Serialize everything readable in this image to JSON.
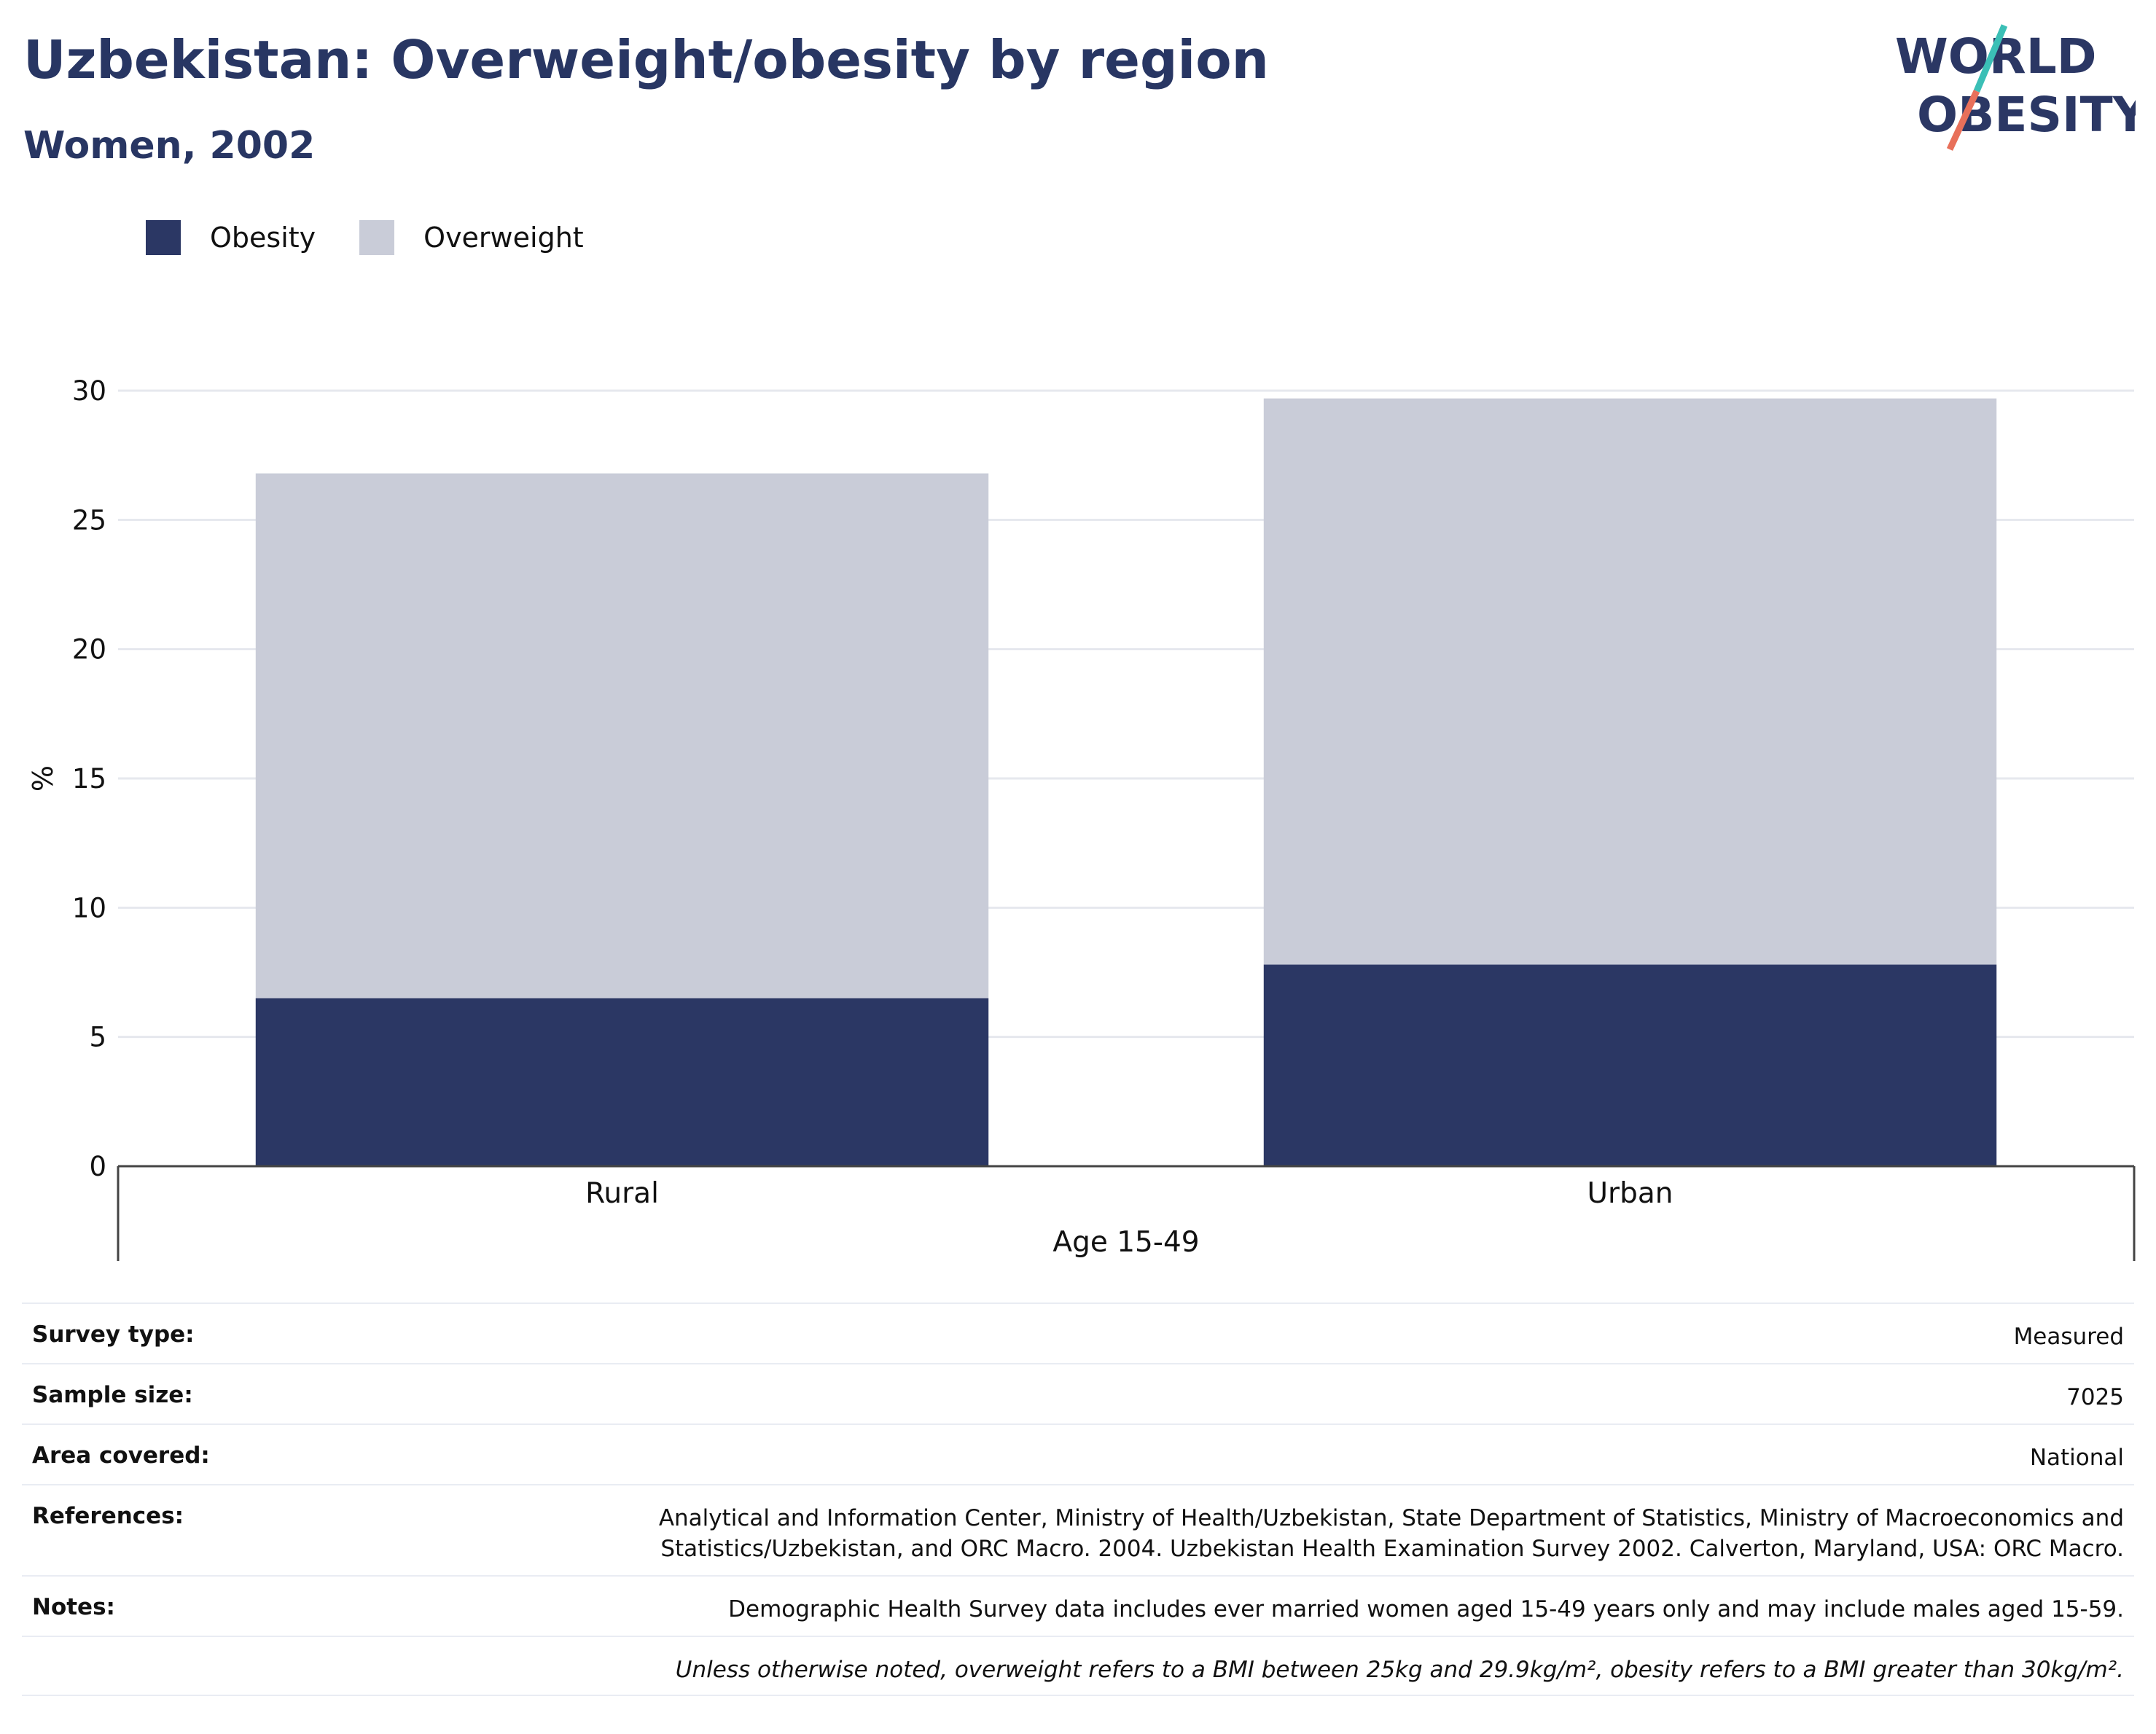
{
  "header": {
    "title": "Uzbekistan: Overweight/obesity by region",
    "subtitle": "Women, 2002"
  },
  "logo": {
    "line1": "WORLD",
    "line2": "OBESITY"
  },
  "colors": {
    "obesity": "#2b3764",
    "overweight": "#c9ccd8",
    "text": "#283663",
    "accent_teal": "#3bbfb6",
    "accent_coral": "#e8705a"
  },
  "legend": [
    {
      "label": "Obesity",
      "color": "#2b3764"
    },
    {
      "label": "Overweight",
      "color": "#c9ccd8"
    }
  ],
  "chart_data": {
    "type": "bar",
    "stacked": true,
    "categories": [
      "Rural",
      "Urban"
    ],
    "series": [
      {
        "name": "Obesity",
        "values": [
          6.5,
          7.8
        ]
      },
      {
        "name": "Overweight",
        "values": [
          20.3,
          21.9
        ]
      }
    ],
    "title": "Uzbekistan: Overweight/obesity by region",
    "subtitle": "Women, 2002",
    "xlabel": "Age 15-49",
    "ylabel": "%",
    "ylim": [
      0,
      30
    ],
    "yticks": [
      0,
      5,
      10,
      15,
      20,
      25,
      30
    ],
    "grid": true,
    "legend_position": "top-left"
  },
  "info": [
    {
      "label": "Survey type:",
      "value": "Measured"
    },
    {
      "label": "Sample size:",
      "value": "7025"
    },
    {
      "label": "Area covered:",
      "value": "National"
    },
    {
      "label": "References:",
      "value": "Analytical and Information Center, Ministry of Health/Uzbekistan, State Department of Statistics, Ministry of Macroeconomics and Statistics/Uzbekistan, and ORC Macro. 2004. Uzbekistan Health Examination Survey 2002. Calverton, Maryland, USA: ORC Macro."
    },
    {
      "label": "Notes:",
      "value": "Demographic Health Survey data includes ever married women aged 15-49 years only and may include males aged 15-59."
    },
    {
      "label": "",
      "value": "Unless otherwise noted, overweight refers to a BMI between 25kg and 29.9kg/m², obesity refers to a BMI greater than 30kg/m²."
    }
  ]
}
